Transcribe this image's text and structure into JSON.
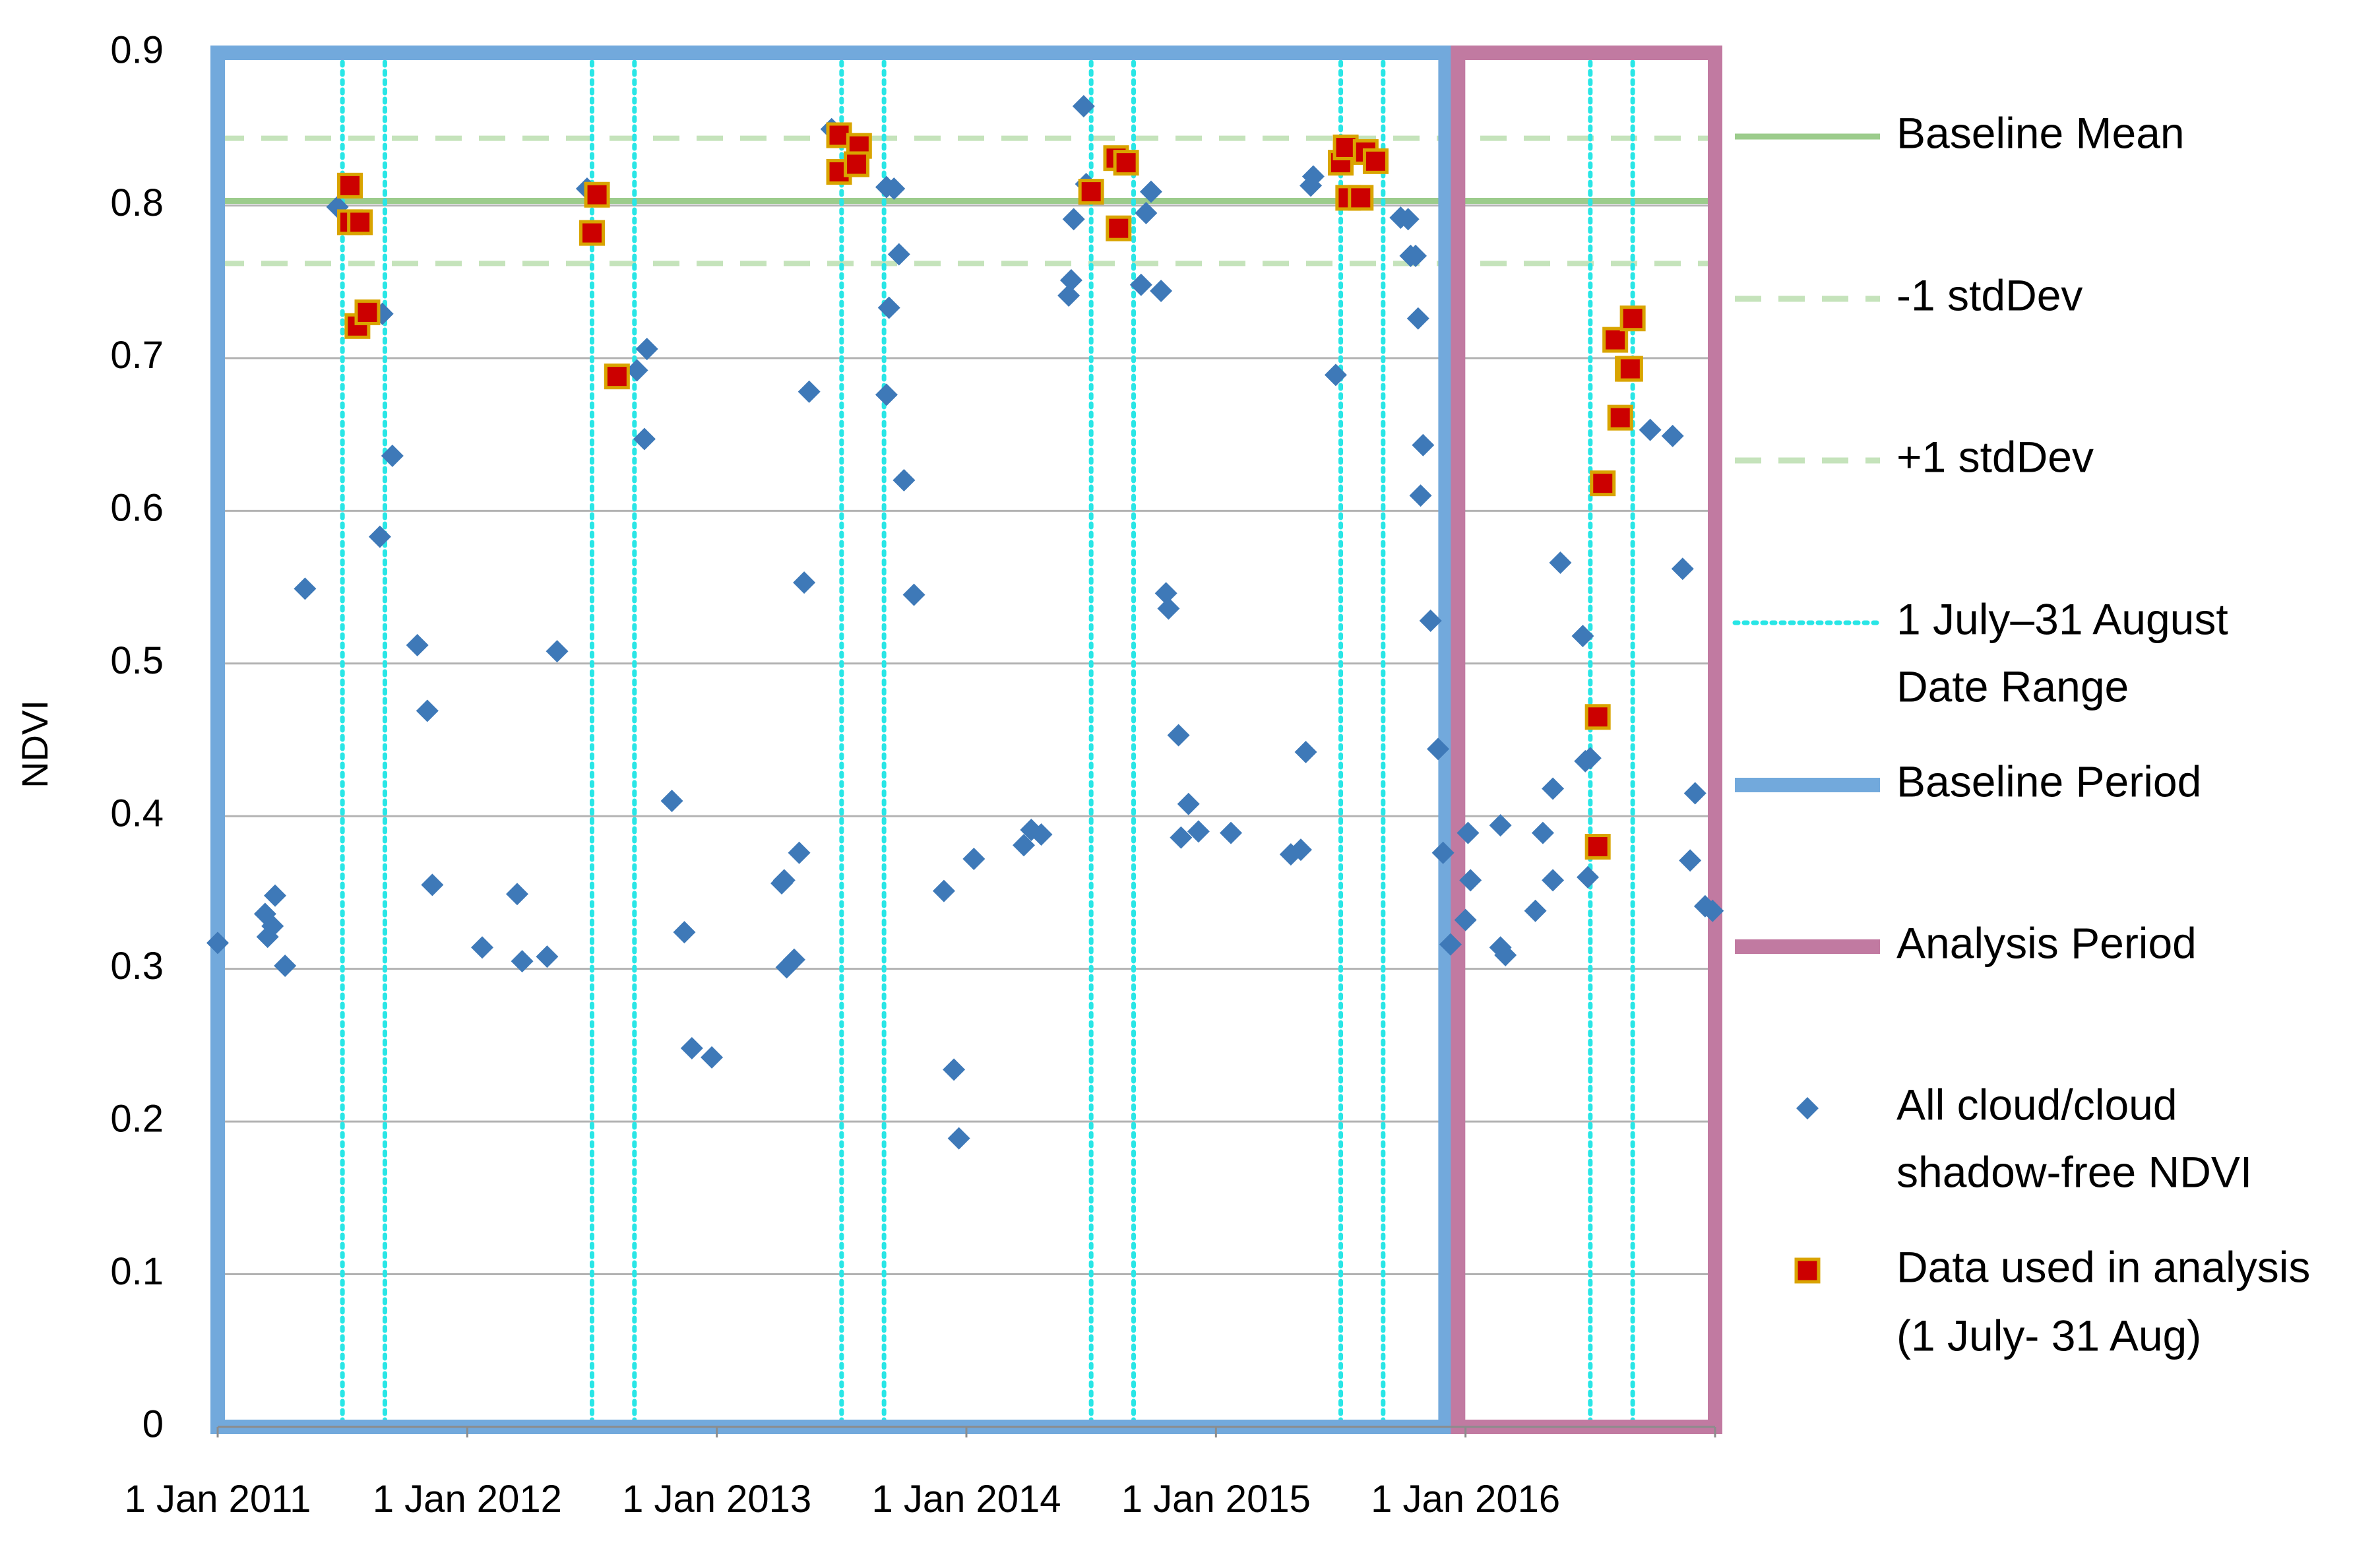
{
  "chart_data": {
    "type": "scatter",
    "title": "",
    "ylabel": "NDVI",
    "xlabel": "",
    "ylim": [
      0,
      0.9
    ],
    "xlim_year": [
      2011.0,
      2017.0
    ],
    "y_ticks": [
      "0",
      "0.1",
      "0.2",
      "0.3",
      "0.4",
      "0.5",
      "0.6",
      "0.7",
      "0.8",
      "0.9"
    ],
    "x_ticks": [
      {
        "year": 2011,
        "label": "1 Jan 2011"
      },
      {
        "year": 2012,
        "label": "1 Jan 2012"
      },
      {
        "year": 2013,
        "label": "1 Jan 2013"
      },
      {
        "year": 2014,
        "label": "1 Jan 2014"
      },
      {
        "year": 2015,
        "label": "1 Jan 2015"
      },
      {
        "year": 2016,
        "label": "1 Jan 2016"
      }
    ],
    "baseline_mean": 0.803,
    "minus_1_stddev": 0.762,
    "plus_1_stddev": 0.844,
    "date_range_lines_year": [
      2011.5,
      2011.67,
      2012.5,
      2012.67,
      2013.5,
      2013.67,
      2014.5,
      2014.67,
      2015.5,
      2015.67,
      2016.5,
      2016.67
    ],
    "baseline_period_year": [
      2011.0,
      2015.92
    ],
    "analysis_period_year": [
      2015.97,
      2017.0
    ],
    "series": [
      {
        "name": "All cloud/cloud shadow-free NDVI",
        "marker": "diamond",
        "points": [
          [
            2011.0,
            0.317
          ],
          [
            2011.19,
            0.336
          ],
          [
            2011.2,
            0.321
          ],
          [
            2011.22,
            0.328
          ],
          [
            2011.23,
            0.348
          ],
          [
            2011.27,
            0.302
          ],
          [
            2011.35,
            0.549
          ],
          [
            2011.48,
            0.799
          ],
          [
            2011.66,
            0.729
          ],
          [
            2011.65,
            0.583
          ],
          [
            2011.7,
            0.636
          ],
          [
            2011.8,
            0.512
          ],
          [
            2011.84,
            0.469
          ],
          [
            2011.86,
            0.355
          ],
          [
            2012.06,
            0.314
          ],
          [
            2012.2,
            0.349
          ],
          [
            2012.22,
            0.305
          ],
          [
            2012.32,
            0.308
          ],
          [
            2012.36,
            0.508
          ],
          [
            2012.48,
            0.811
          ],
          [
            2012.68,
            0.692
          ],
          [
            2012.72,
            0.706
          ],
          [
            2012.71,
            0.647
          ],
          [
            2012.82,
            0.41
          ],
          [
            2012.87,
            0.324
          ],
          [
            2012.9,
            0.248
          ],
          [
            2012.98,
            0.242
          ],
          [
            2013.26,
            0.356
          ],
          [
            2013.27,
            0.358
          ],
          [
            2013.28,
            0.301
          ],
          [
            2013.31,
            0.306
          ],
          [
            2013.33,
            0.376
          ],
          [
            2013.35,
            0.553
          ],
          [
            2013.37,
            0.678
          ],
          [
            2013.46,
            0.85
          ],
          [
            2013.68,
            0.812
          ],
          [
            2013.71,
            0.811
          ],
          [
            2013.69,
            0.733
          ],
          [
            2013.73,
            0.768
          ],
          [
            2013.75,
            0.62
          ],
          [
            2013.79,
            0.545
          ],
          [
            2013.68,
            0.676
          ],
          [
            2013.91,
            0.351
          ],
          [
            2013.95,
            0.234
          ],
          [
            2013.97,
            0.189
          ],
          [
            2014.03,
            0.372
          ],
          [
            2014.23,
            0.381
          ],
          [
            2014.26,
            0.391
          ],
          [
            2014.3,
            0.388
          ],
          [
            2014.41,
            0.741
          ],
          [
            2014.42,
            0.751
          ],
          [
            2014.43,
            0.791
          ],
          [
            2014.47,
            0.865
          ],
          [
            2014.48,
            0.814
          ],
          [
            2014.72,
            0.795
          ],
          [
            2014.74,
            0.809
          ],
          [
            2014.7,
            0.748
          ],
          [
            2014.78,
            0.744
          ],
          [
            2014.8,
            0.546
          ],
          [
            2014.81,
            0.536
          ],
          [
            2014.85,
            0.453
          ],
          [
            2014.86,
            0.386
          ],
          [
            2014.89,
            0.408
          ],
          [
            2014.93,
            0.39
          ],
          [
            2015.06,
            0.389
          ],
          [
            2015.3,
            0.375
          ],
          [
            2015.34,
            0.378
          ],
          [
            2015.36,
            0.442
          ],
          [
            2015.38,
            0.813
          ],
          [
            2015.39,
            0.819
          ],
          [
            2015.48,
            0.689
          ],
          [
            2015.74,
            0.792
          ],
          [
            2015.77,
            0.791
          ],
          [
            2015.78,
            0.767
          ],
          [
            2015.8,
            0.767
          ],
          [
            2015.81,
            0.726
          ],
          [
            2015.83,
            0.643
          ],
          [
            2015.82,
            0.61
          ],
          [
            2015.86,
            0.528
          ],
          [
            2015.89,
            0.444
          ],
          [
            2015.91,
            0.376
          ],
          [
            2015.94,
            0.316
          ],
          [
            2016.0,
            0.332
          ],
          [
            2016.01,
            0.389
          ],
          [
            2016.02,
            0.358
          ],
          [
            2016.14,
            0.394
          ],
          [
            2016.14,
            0.314
          ],
          [
            2016.16,
            0.309
          ],
          [
            2016.28,
            0.338
          ],
          [
            2016.31,
            0.389
          ],
          [
            2016.35,
            0.358
          ],
          [
            2016.35,
            0.418
          ],
          [
            2016.38,
            0.566
          ],
          [
            2016.47,
            0.518
          ],
          [
            2016.48,
            0.436
          ],
          [
            2016.5,
            0.438
          ],
          [
            2016.49,
            0.36
          ],
          [
            2016.74,
            0.653
          ],
          [
            2016.83,
            0.649
          ],
          [
            2016.87,
            0.562
          ],
          [
            2016.9,
            0.371
          ],
          [
            2016.92,
            0.415
          ],
          [
            2016.96,
            0.341
          ],
          [
            2016.99,
            0.338
          ]
        ]
      },
      {
        "name": "Data used in analysis (1 July- 31 Aug)",
        "marker": "square",
        "points": [
          [
            2011.53,
            0.813
          ],
          [
            2011.53,
            0.789
          ],
          [
            2011.57,
            0.789
          ],
          [
            2011.56,
            0.721
          ],
          [
            2011.6,
            0.73
          ],
          [
            2012.5,
            0.782
          ],
          [
            2012.52,
            0.807
          ],
          [
            2012.6,
            0.688
          ],
          [
            2013.49,
            0.846
          ],
          [
            2013.49,
            0.822
          ],
          [
            2013.57,
            0.839
          ],
          [
            2013.56,
            0.827
          ],
          [
            2014.5,
            0.809
          ],
          [
            2014.6,
            0.831
          ],
          [
            2014.61,
            0.785
          ],
          [
            2014.64,
            0.828
          ],
          [
            2015.5,
            0.828
          ],
          [
            2015.52,
            0.838
          ],
          [
            2015.53,
            0.805
          ],
          [
            2015.58,
            0.805
          ],
          [
            2015.6,
            0.835
          ],
          [
            2015.64,
            0.829
          ],
          [
            2016.53,
            0.465
          ],
          [
            2016.53,
            0.38
          ],
          [
            2016.55,
            0.618
          ],
          [
            2016.6,
            0.712
          ],
          [
            2016.62,
            0.661
          ],
          [
            2016.65,
            0.693
          ],
          [
            2016.66,
            0.693
          ],
          [
            2016.67,
            0.726
          ]
        ]
      }
    ],
    "legend": [
      {
        "key": "baseline-mean",
        "label": "Baseline Mean"
      },
      {
        "key": "minus-stddev",
        "label": "-1 stdDev"
      },
      {
        "key": "plus-stddev",
        "label": "+1 stdDev"
      },
      {
        "key": "date-range",
        "label": "1 July–31 August",
        "label2": "Date Range"
      },
      {
        "key": "baseline-period",
        "label": "Baseline Period"
      },
      {
        "key": "analysis-period",
        "label": "Analysis Period"
      },
      {
        "key": "all-ndvi",
        "label": "All cloud/cloud",
        "label2": "shadow-free NDVI"
      },
      {
        "key": "analysis-data",
        "label": "Data used in analysis",
        "label2": "(1 July- 31 Aug)"
      }
    ],
    "colors": {
      "mean_line": "#9ccc8c",
      "stddev_line": "#c5e3bb",
      "date_range": "#29e6e6",
      "baseline_period": "#72a9dc",
      "analysis_period": "#c17aa1",
      "diamond": "#3e79b8",
      "square_fill": "#cc0000",
      "square_edge": "#d9a400",
      "grid": "#b3b3b3",
      "axis": "#8c8c8c"
    }
  }
}
